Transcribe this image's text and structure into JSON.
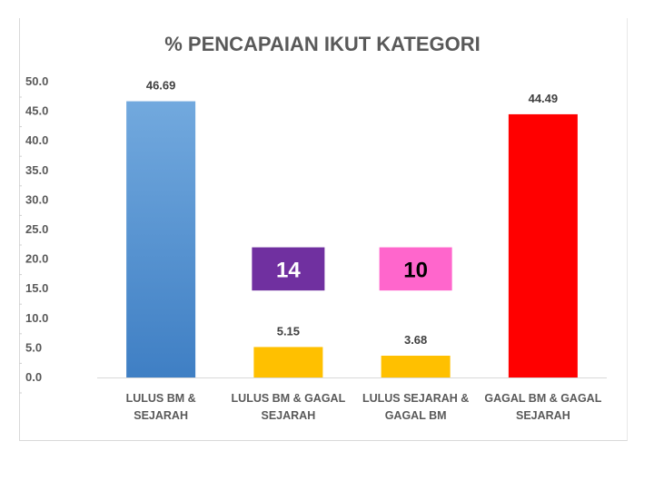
{
  "chart_data": {
    "type": "bar",
    "title": "% PENCAPAIAN IKUT KATEGORI",
    "xlabel": "",
    "ylabel": "",
    "ylim": [
      0,
      50
    ],
    "yticks": [
      "0.0",
      "5.0",
      "10.0",
      "15.0",
      "20.0",
      "25.0",
      "30.0",
      "35.0",
      "40.0",
      "45.0",
      "50.0"
    ],
    "grid": false,
    "legend": "none",
    "categories": [
      [
        "LULUS BM &",
        "SEJARAH"
      ],
      [
        "LULUS BM & GAGAL",
        "SEJARAH"
      ],
      [
        "LULUS SEJARAH &",
        "GAGAL BM"
      ],
      [
        "GAGAL BM & GAGAL",
        "SEJARAH"
      ]
    ],
    "values": [
      46.69,
      5.15,
      3.68,
      44.49
    ],
    "value_labels": [
      "46.69",
      "5.15",
      "3.68",
      "44.49"
    ],
    "bar_colors": [
      "#5b9bd5",
      "#ffc000",
      "#ffc000",
      "#ff0000"
    ],
    "annotations": [
      {
        "text": "14",
        "category_index": 1,
        "y_from": 14.7,
        "y_to": 22,
        "background": "#7030a0",
        "color": "#ffffff"
      },
      {
        "text": "10",
        "category_index": 2,
        "y_from": 14.7,
        "y_to": 22,
        "background": "#ff66cc",
        "color": "#000000"
      }
    ]
  }
}
